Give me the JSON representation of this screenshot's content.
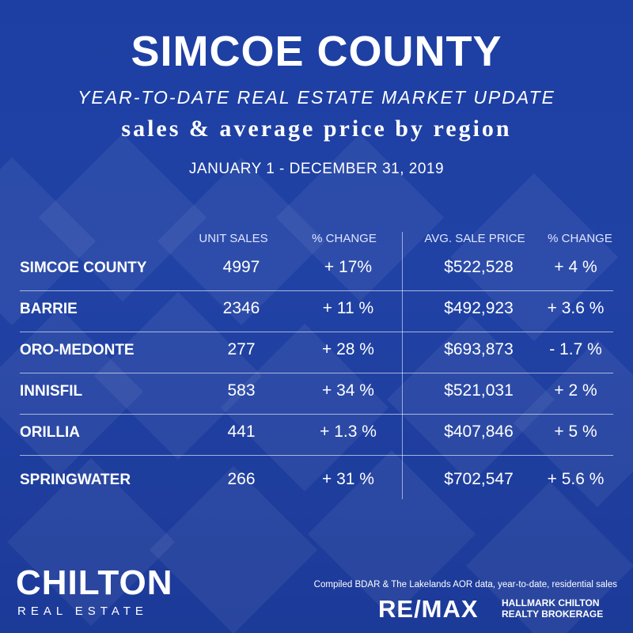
{
  "header": {
    "title": "SIMCOE COUNTY",
    "subtitle": "YEAR-TO-DATE REAL ESTATE MARKET UPDATE",
    "tagline": "sales & average price by region",
    "date_range": "JANUARY 1 - DECEMBER 31, 2019"
  },
  "table": {
    "columns": [
      "UNIT SALES",
      "% CHANGE",
      "AVG. SALE PRICE",
      "% CHANGE"
    ],
    "rows": [
      {
        "region": "SIMCOE COUNTY",
        "unit_sales": "4997",
        "sales_change": "+ 17%",
        "avg_price": "$522,528",
        "price_change": "+ 4 %"
      },
      {
        "region": "BARRIE",
        "unit_sales": "2346",
        "sales_change": "+ 11 %",
        "avg_price": "$492,923",
        "price_change": "+ 3.6 %"
      },
      {
        "region": "ORO-MEDONTE",
        "unit_sales": "277",
        "sales_change": "+ 28 %",
        "avg_price": "$693,873",
        "price_change": "- 1.7  %"
      },
      {
        "region": "INNISFIL",
        "unit_sales": "583",
        "sales_change": "+ 34 %",
        "avg_price": "$521,031",
        "price_change": "+ 2 %"
      },
      {
        "region": "ORILLIA",
        "unit_sales": "441",
        "sales_change": "+ 1.3 %",
        "avg_price": "$407,846",
        "price_change": "+ 5 %"
      },
      {
        "region": "SPRINGWATER",
        "unit_sales": "266",
        "sales_change": "+ 31 %",
        "avg_price": "$702,547",
        "price_change": "+ 5.6 %"
      }
    ]
  },
  "footer": {
    "brand": "CHILTON",
    "brand_sub": "REAL ESTATE",
    "compiled_note": "Compiled BDAR & The Lakelands AOR data, year-to-date, residential sales",
    "remax": "RE/MAX",
    "brokerage_line1": "HALLMARK CHILTON",
    "brokerage_line2": "REALTY BROKERAGE"
  },
  "colors": {
    "background": "#1f3f9e",
    "text": "#ffffff"
  }
}
